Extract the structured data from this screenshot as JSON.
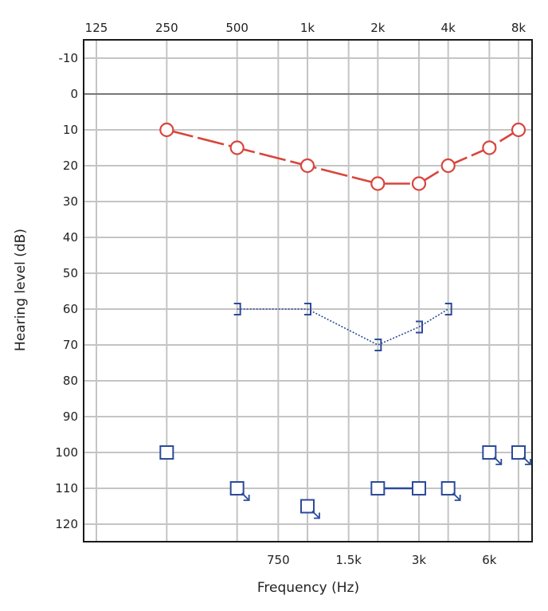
{
  "chart_data": {
    "type": "line",
    "title": "",
    "xlabel": "Frequency (Hz)",
    "ylabel": "Hearing level (dB)",
    "x_scale": "log",
    "xlim": [
      125,
      8000
    ],
    "ylim": [
      120,
      -10
    ],
    "y_inverted": true,
    "grid": true,
    "top_ticks": [
      {
        "label": "125",
        "freq": 125
      },
      {
        "label": "250",
        "freq": 250
      },
      {
        "label": "500",
        "freq": 500
      },
      {
        "label": "1k",
        "freq": 1000
      },
      {
        "label": "2k",
        "freq": 2000
      },
      {
        "label": "4k",
        "freq": 4000
      },
      {
        "label": "8k",
        "freq": 8000
      }
    ],
    "bottom_ticks": [
      {
        "label": "750",
        "freq": 750
      },
      {
        "label": "1.5k",
        "freq": 1500
      },
      {
        "label": "3k",
        "freq": 3000
      },
      {
        "label": "6k",
        "freq": 6000
      }
    ],
    "y_ticks": [
      -10,
      0,
      10,
      20,
      30,
      40,
      50,
      60,
      70,
      80,
      90,
      100,
      110,
      120
    ],
    "colors": {
      "red": "#d9453c",
      "blue": "#2c4a9a",
      "grid": "#c4c4c4",
      "zero_line": "#777777",
      "frame": "#1a1a1a"
    },
    "series": [
      {
        "marker": "circle",
        "color": "#d9453c",
        "line": "dashed",
        "points": [
          [
            250,
            10
          ],
          [
            500,
            15
          ],
          [
            1000,
            20
          ],
          [
            2000,
            25
          ],
          [
            3000,
            25
          ],
          [
            4000,
            20
          ],
          [
            6000,
            15
          ],
          [
            8000,
            10
          ]
        ]
      },
      {
        "marker": "right-bracket",
        "color": "#2c4a9a",
        "line": "dotted",
        "points": [
          [
            500,
            60
          ],
          [
            1000,
            60
          ],
          [
            2000,
            70
          ],
          [
            3000,
            65
          ],
          [
            4000,
            60
          ]
        ]
      },
      {
        "marker": "square",
        "color": "#2c4a9a",
        "line": "none",
        "points": [
          [
            250,
            100
          ]
        ]
      },
      {
        "marker": "square-no-response",
        "color": "#2c4a9a",
        "line": "none",
        "points": [
          [
            500,
            110
          ],
          [
            1000,
            115
          ]
        ]
      },
      {
        "marker": "square",
        "color": "#2c4a9a",
        "line": "solid",
        "points": [
          [
            2000,
            110
          ],
          [
            3000,
            110
          ]
        ]
      },
      {
        "marker": "square-no-response",
        "color": "#2c4a9a",
        "line": "none",
        "points": [
          [
            4000,
            110
          ],
          [
            6000,
            100
          ],
          [
            8000,
            100
          ]
        ]
      }
    ]
  }
}
